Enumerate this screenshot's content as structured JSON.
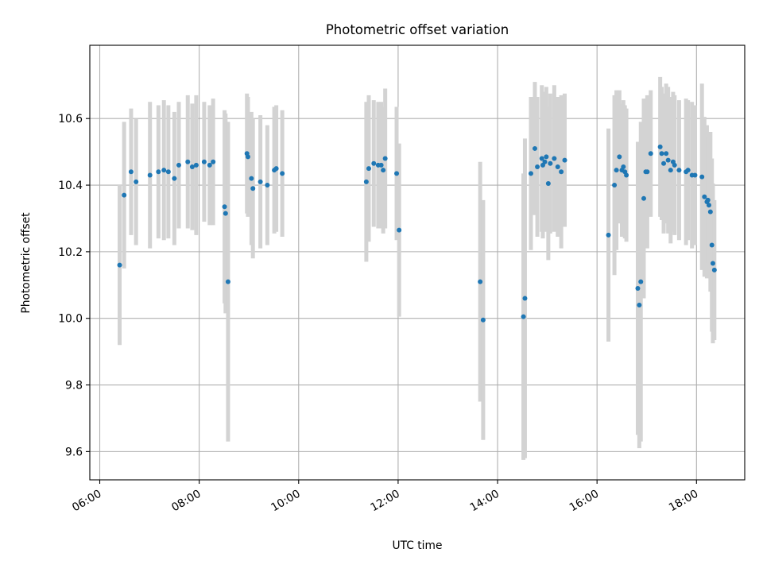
{
  "chart_data": {
    "type": "scatter",
    "title": "Photometric offset variation",
    "xlabel": "UTC time",
    "ylabel": "Photometric offset",
    "x_unit": "hours UTC",
    "xlim": [
      5.8,
      18.97
    ],
    "ylim": [
      9.515,
      10.82
    ],
    "x_ticks": [
      {
        "value": 6,
        "label": "06:00"
      },
      {
        "value": 8,
        "label": "08:00"
      },
      {
        "value": 10,
        "label": "10:00"
      },
      {
        "value": 12,
        "label": "12:00"
      },
      {
        "value": 14,
        "label": "14:00"
      },
      {
        "value": 16,
        "label": "16:00"
      },
      {
        "value": 18,
        "label": "18:00"
      }
    ],
    "y_ticks": [
      {
        "value": 9.6,
        "label": "9.6"
      },
      {
        "value": 9.8,
        "label": "9.8"
      },
      {
        "value": 10.0,
        "label": "10.0"
      },
      {
        "value": 10.2,
        "label": "10.2"
      },
      {
        "value": 10.4,
        "label": "10.4"
      },
      {
        "value": 10.6,
        "label": "10.6"
      }
    ],
    "grid": true,
    "x_tick_rotation": "angled",
    "colors": {
      "points": "#1f77b4",
      "error_bars": "#d3d3d3",
      "grid": "#b0b0b0"
    },
    "series": [
      {
        "x": [
          6.4,
          6.49,
          6.63,
          6.73,
          7.01,
          7.18,
          7.29,
          7.38,
          7.5,
          7.59,
          7.77,
          7.86,
          7.94,
          8.1,
          8.21,
          8.28,
          8.51,
          8.53,
          8.58,
          8.96,
          8.98,
          9.05,
          9.08,
          9.23,
          9.37,
          9.51,
          9.55,
          9.67,
          11.36,
          11.41,
          11.51,
          11.6,
          11.66,
          11.7,
          11.74,
          11.97,
          12.02,
          13.65,
          13.71,
          14.52,
          14.55,
          14.67,
          14.75,
          14.8,
          14.89,
          14.91,
          14.95,
          14.98,
          15.02,
          15.06,
          15.14,
          15.21,
          15.28,
          15.35,
          16.23,
          16.35,
          16.39,
          16.45,
          16.5,
          16.53,
          16.56,
          16.59,
          16.82,
          16.85,
          16.88,
          16.94,
          16.98,
          17.01,
          17.08,
          17.27,
          17.3,
          17.34,
          17.39,
          17.43,
          17.48,
          17.53,
          17.56,
          17.65,
          17.79,
          17.83,
          17.91,
          17.97,
          18.11,
          18.16,
          18.21,
          18.23,
          18.25,
          18.28,
          18.31,
          18.33,
          18.36
        ],
        "y": [
          10.16,
          10.37,
          10.44,
          10.41,
          10.43,
          10.44,
          10.445,
          10.44,
          10.42,
          10.46,
          10.47,
          10.455,
          10.46,
          10.47,
          10.46,
          10.47,
          10.335,
          10.315,
          10.11,
          10.495,
          10.485,
          10.42,
          10.39,
          10.41,
          10.4,
          10.445,
          10.45,
          10.435,
          10.41,
          10.45,
          10.465,
          10.46,
          10.46,
          10.445,
          10.48,
          10.435,
          10.265,
          10.11,
          9.995,
          10.005,
          10.06,
          10.435,
          10.51,
          10.455,
          10.48,
          10.46,
          10.47,
          10.485,
          10.405,
          10.465,
          10.48,
          10.455,
          10.44,
          10.475,
          10.25,
          10.4,
          10.445,
          10.485,
          10.445,
          10.455,
          10.44,
          10.43,
          10.09,
          10.04,
          10.11,
          10.36,
          10.44,
          10.44,
          10.495,
          10.515,
          10.495,
          10.465,
          10.495,
          10.475,
          10.445,
          10.47,
          10.46,
          10.445,
          10.44,
          10.445,
          10.43,
          10.43,
          10.425,
          10.365,
          10.35,
          10.355,
          10.34,
          10.32,
          10.22,
          10.165,
          10.145
        ],
        "yerr": [
          0.24,
          0.22,
          0.19,
          0.19,
          0.22,
          0.2,
          0.21,
          0.2,
          0.2,
          0.19,
          0.2,
          0.19,
          0.21,
          0.18,
          0.18,
          0.19,
          0.29,
          0.3,
          0.48,
          0.18,
          0.18,
          0.2,
          0.21,
          0.2,
          0.18,
          0.19,
          0.19,
          0.19,
          0.24,
          0.22,
          0.19,
          0.19,
          0.19,
          0.19,
          0.21,
          0.2,
          0.26,
          0.36,
          0.36,
          0.43,
          0.48,
          0.23,
          0.2,
          0.21,
          0.22,
          0.22,
          0.21,
          0.21,
          0.23,
          0.21,
          0.22,
          0.21,
          0.23,
          0.2,
          0.32,
          0.27,
          0.24,
          0.2,
          0.2,
          0.2,
          0.2,
          0.2,
          0.44,
          0.43,
          0.48,
          0.3,
          0.22,
          0.23,
          0.19,
          0.21,
          0.2,
          0.21,
          0.21,
          0.22,
          0.22,
          0.21,
          0.21,
          0.21,
          0.22,
          0.21,
          0.22,
          0.21,
          0.28,
          0.24,
          0.23,
          0.19,
          0.2,
          0.24,
          0.26,
          0.24,
          0.21
        ]
      }
    ]
  }
}
